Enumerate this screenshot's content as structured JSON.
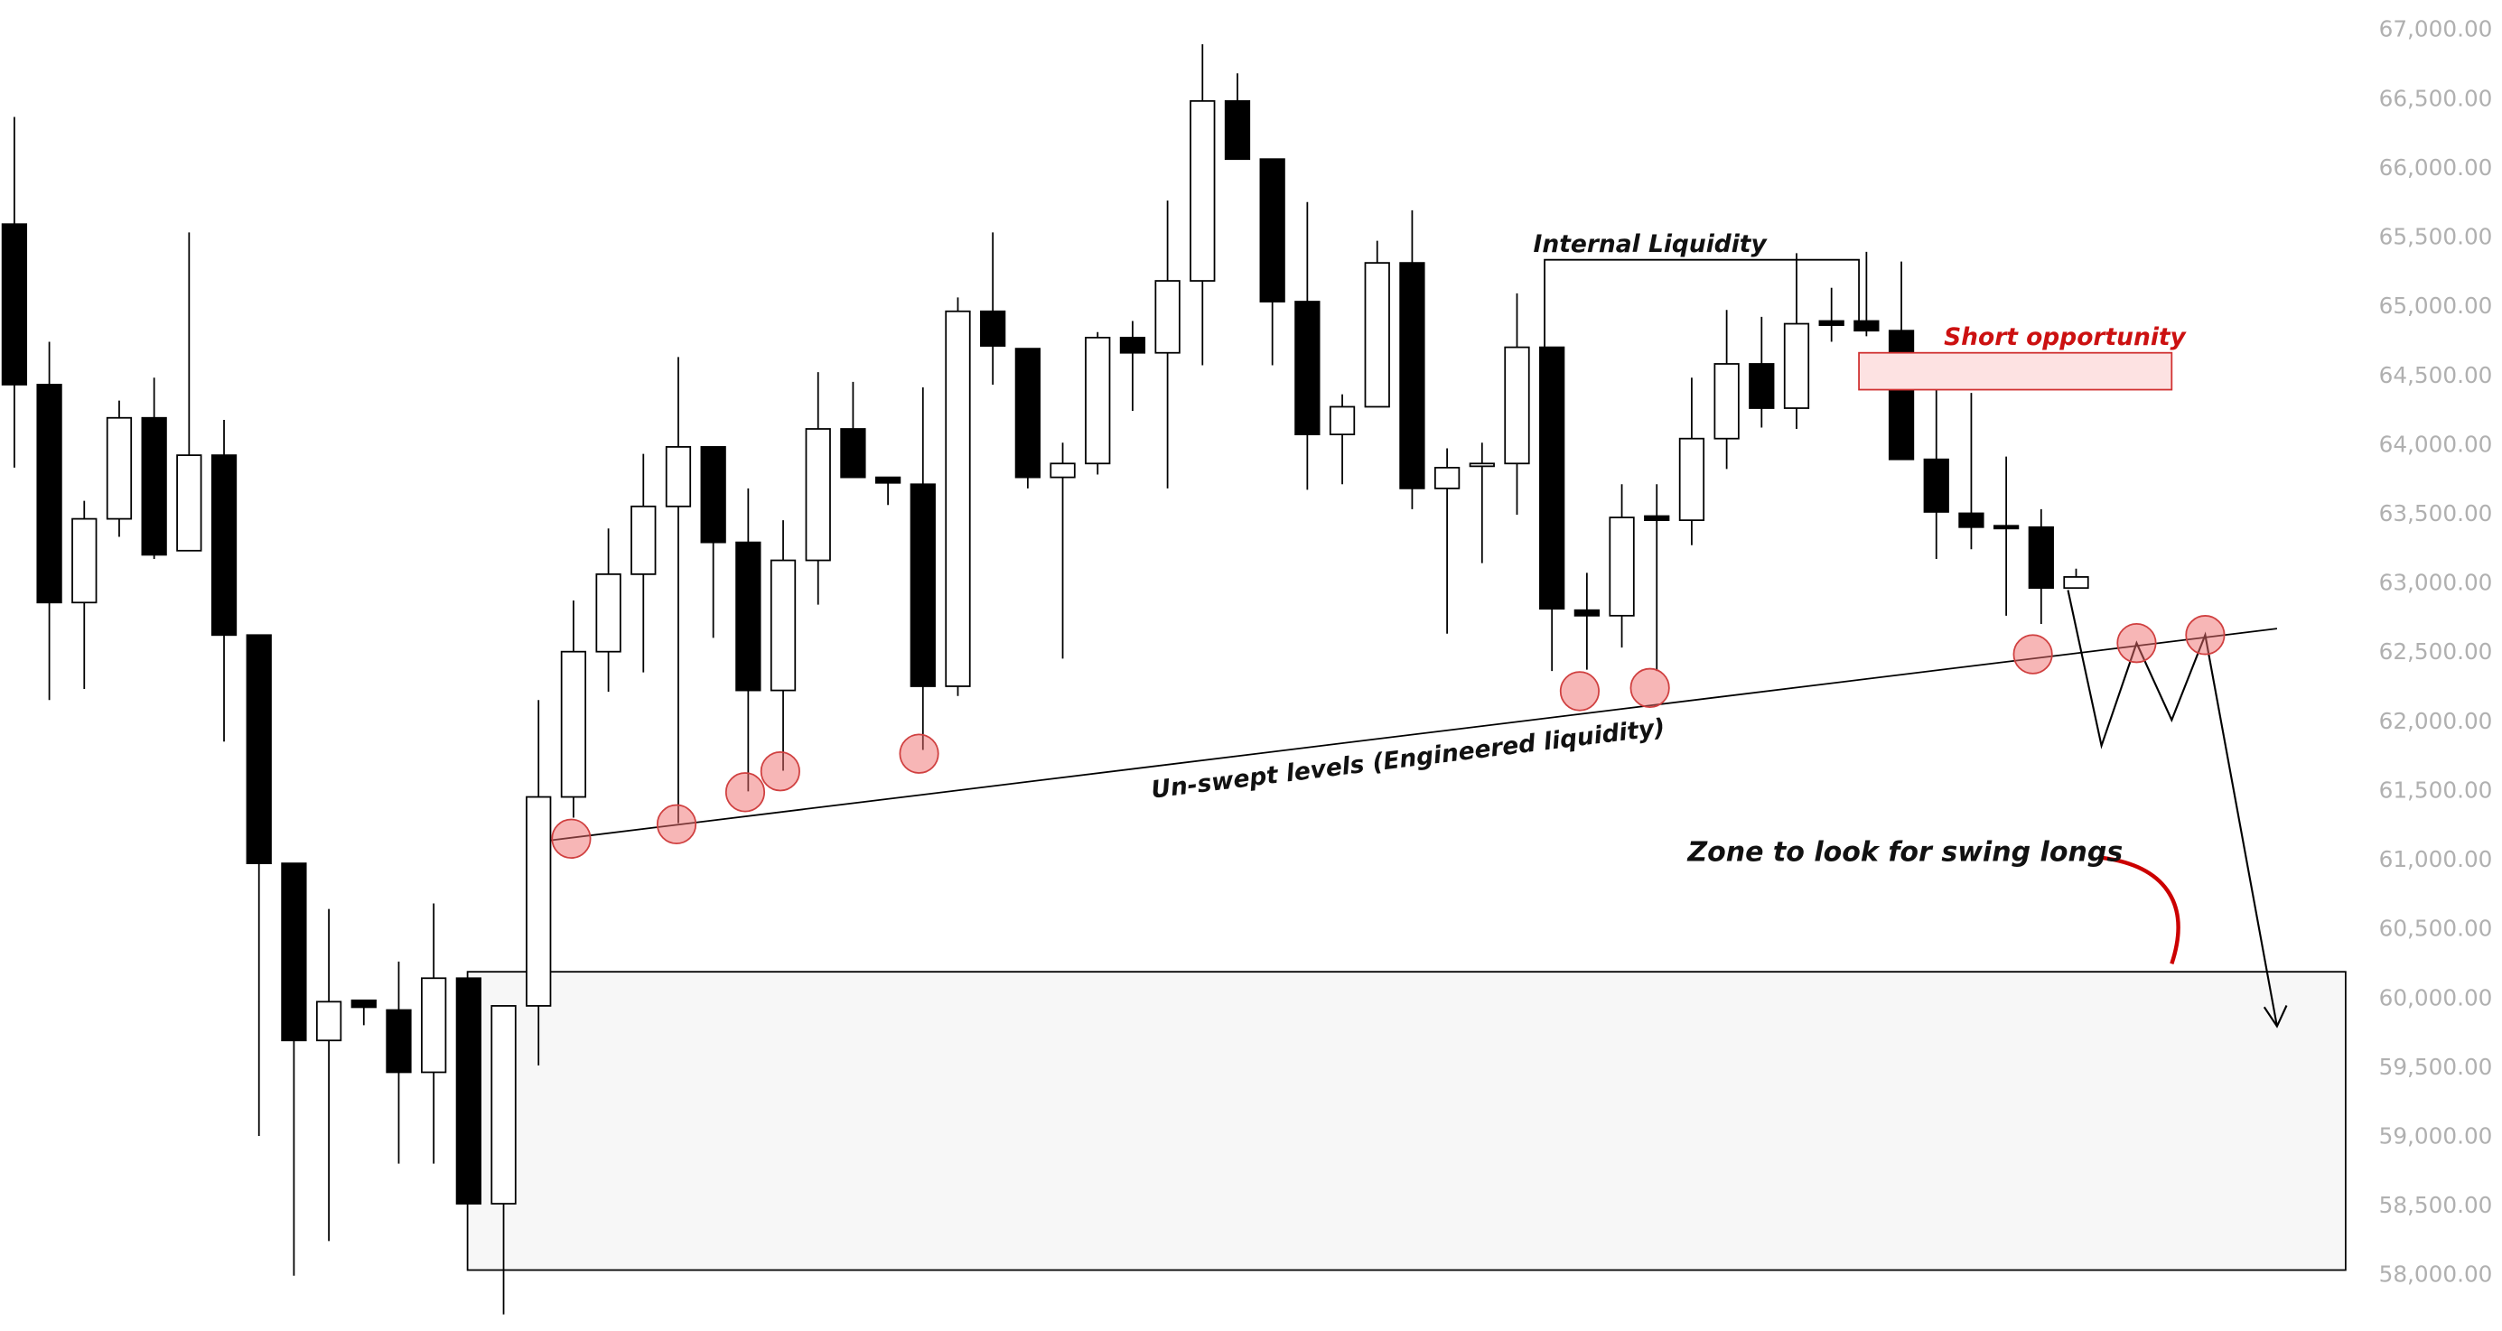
{
  "chart_data": {
    "type": "candlestick",
    "open": [
      65600,
      64440,
      62865,
      63470,
      64200,
      63240,
      63930,
      62630,
      60980,
      59700,
      59990,
      59920,
      59470,
      60150,
      58520,
      59950,
      61460,
      62510,
      63070,
      63560,
      63990,
      63300,
      62230,
      63170,
      64120,
      63770,
      63720,
      62260,
      64970,
      64700,
      63770,
      63870,
      64780,
      64670,
      65190,
      66490,
      66070,
      65040,
      64080,
      64280,
      65320,
      63690,
      63850,
      63870,
      64710,
      62810,
      62770,
      63490,
      63460,
      64050,
      64590,
      64270,
      64900,
      64900,
      64830,
      63900,
      63510,
      63420,
      63410,
      62970
    ],
    "high": [
      66375,
      64750,
      63600,
      64325,
      64490,
      65540,
      64185,
      62630,
      60980,
      60650,
      59990,
      60270,
      60690,
      60150,
      59950,
      62160,
      62880,
      63400,
      63940,
      64640,
      63990,
      63690,
      63460,
      64530,
      64460,
      63770,
      64420,
      65070,
      65540,
      64700,
      64020,
      64820,
      64900,
      65770,
      66900,
      66690,
      66070,
      65760,
      64370,
      65480,
      65700,
      63980,
      64020,
      65100,
      64710,
      63080,
      63720,
      63720,
      64490,
      64980,
      64930,
      65390,
      65140,
      65400,
      65330,
      64420,
      64380,
      63920,
      63540,
      63110
    ],
    "low": [
      63840,
      62160,
      62240,
      63340,
      63180,
      63240,
      61860,
      59010,
      58000,
      58250,
      59810,
      58810,
      58810,
      58520,
      57720,
      59520,
      61310,
      62220,
      62360,
      61270,
      62610,
      61500,
      61650,
      62850,
      63770,
      63570,
      61800,
      62190,
      64440,
      63690,
      62460,
      63790,
      64250,
      63690,
      64580,
      66070,
      64580,
      63680,
      63720,
      64280,
      63540,
      62640,
      63150,
      63500,
      62370,
      62380,
      62540,
      62370,
      63280,
      63830,
      64130,
      64120,
      64750,
      64790,
      63900,
      63180,
      63250,
      62770,
      62710,
      62970
    ],
    "close": [
      64440,
      62865,
      63470,
      64200,
      63210,
      63930,
      62630,
      60980,
      59700,
      59980,
      59940,
      59470,
      60150,
      58520,
      59950,
      61460,
      62510,
      63070,
      63560,
      63990,
      63300,
      62230,
      63170,
      64120,
      63770,
      63730,
      62260,
      64970,
      64720,
      63770,
      63870,
      64780,
      64670,
      65190,
      66490,
      66070,
      65040,
      64080,
      64280,
      65320,
      63690,
      63840,
      63870,
      64710,
      62820,
      62770,
      63480,
      63460,
      64050,
      64590,
      64270,
      64880,
      64870,
      64830,
      63900,
      63520,
      63410,
      63400,
      62970,
      63050
    ],
    "up_color": "#ffffff",
    "down_color": "#000000",
    "ylim": [
      57600,
      67220
    ],
    "yticks": [
      {
        "value": 58000,
        "label": "58,000.00"
      },
      {
        "value": 58500,
        "label": "58,500.00"
      },
      {
        "value": 59000,
        "label": "59,000.00"
      },
      {
        "value": 59500,
        "label": "59,500.00"
      },
      {
        "value": 60000,
        "label": "60,000.00"
      },
      {
        "value": 60500,
        "label": "60,500.00"
      },
      {
        "value": 61000,
        "label": "61,000.00"
      },
      {
        "value": 61500,
        "label": "61,500.00"
      },
      {
        "value": 62000,
        "label": "62,000.00"
      },
      {
        "value": 62500,
        "label": "62,500.00"
      },
      {
        "value": 63000,
        "label": "63,000.00"
      },
      {
        "value": 63500,
        "label": "63,500.00"
      },
      {
        "value": 64000,
        "label": "64,000.00"
      },
      {
        "value": 64500,
        "label": "64,500.00"
      },
      {
        "value": 65000,
        "label": "65,000.00"
      },
      {
        "value": 65500,
        "label": "65,500.00"
      },
      {
        "value": 66000,
        "label": "66,000.00"
      },
      {
        "value": 66500,
        "label": "66,500.00"
      },
      {
        "value": 67000,
        "label": "67,000.00"
      }
    ],
    "annotations": [
      "Internal Liquidity",
      "Short opportunity",
      "Un-swept levels (Engineered liquidity)",
      "Zone to look for swing longs"
    ]
  }
}
